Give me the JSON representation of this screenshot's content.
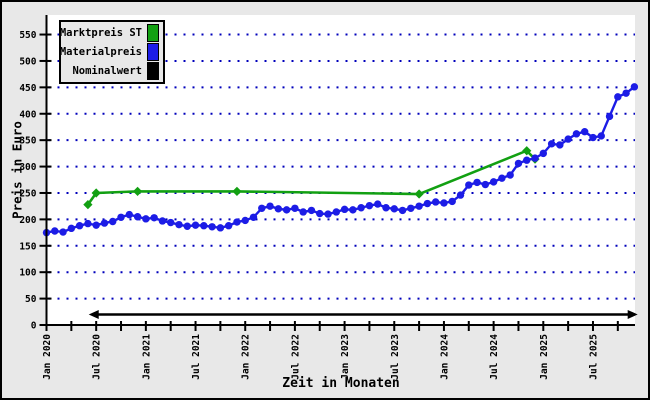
{
  "window": {
    "background": "#e8e8e8",
    "plot_background": "#ffffff",
    "border_color": "#000000"
  },
  "chart_data": {
    "type": "line",
    "title": "",
    "xlabel": "Zeit in Monaten",
    "ylabel": "Preis in Euro",
    "grid": {
      "on": true,
      "color": "#0000bb",
      "style": "dotted"
    },
    "ylim": [
      0,
      587
    ],
    "xlim_months": [
      0,
      71.4
    ],
    "y_ticks": [
      0,
      50,
      100,
      150,
      200,
      250,
      300,
      350,
      400,
      450,
      500,
      550
    ],
    "x_minor_tick_step": 3,
    "x_minor_tick_max": 69,
    "x_ticks": [
      {
        "m": 0,
        "label": "Jan 2020"
      },
      {
        "m": 6,
        "label": "Jul 2020"
      },
      {
        "m": 12,
        "label": "Jan 2021"
      },
      {
        "m": 18,
        "label": "Jul 2021"
      },
      {
        "m": 24,
        "label": "Jan 2022"
      },
      {
        "m": 30,
        "label": "Jul 2022"
      },
      {
        "m": 36,
        "label": "Jan 2023"
      },
      {
        "m": 42,
        "label": "Jul 2023"
      },
      {
        "m": 48,
        "label": "Jan 2024"
      },
      {
        "m": 54,
        "label": "Jul 2024"
      },
      {
        "m": 60,
        "label": "Jan 2025"
      },
      {
        "m": 66,
        "label": "Jul 2025"
      }
    ],
    "series": [
      {
        "name": "Marktpreis ST",
        "color": "#12a012",
        "marker": "diamond",
        "points": [
          [
            5,
            228
          ],
          [
            6,
            250
          ],
          [
            11,
            253
          ],
          [
            23,
            253
          ],
          [
            45,
            248
          ],
          [
            58,
            330
          ],
          [
            59,
            314
          ]
        ]
      },
      {
        "name": "Materialpreis",
        "color": "#1c1ce6",
        "marker": "circle",
        "start_month": 0,
        "start_label": "Jan 2020",
        "values": [
          175,
          178,
          176,
          183,
          188,
          192,
          189,
          193,
          196,
          204,
          209,
          205,
          201,
          203,
          197,
          194,
          190,
          187,
          189,
          188,
          186,
          184,
          188,
          195,
          198,
          204,
          221,
          225,
          220,
          218,
          221,
          214,
          217,
          211,
          210,
          214,
          219,
          218,
          222,
          226,
          229,
          222,
          220,
          217,
          221,
          225,
          230,
          233,
          231,
          234,
          246,
          265,
          270,
          266,
          271,
          278,
          284,
          306,
          312,
          316,
          325,
          343,
          341,
          352,
          362,
          366,
          355,
          358,
          395,
          432,
          439,
          451
        ]
      },
      {
        "name": "Nominalwert",
        "color": "#000000",
        "style": "double-arrow-hline",
        "value": 20,
        "from_month": 5.1,
        "to_month": 71.4
      }
    ],
    "legend": {
      "position": "top-left",
      "items": [
        {
          "label": "Marktpreis ST",
          "color": "#12a012"
        },
        {
          "label": "Materialpreis",
          "color": "#1c1ce6"
        },
        {
          "label": "Nominalwert",
          "color": "#000000"
        }
      ]
    }
  }
}
